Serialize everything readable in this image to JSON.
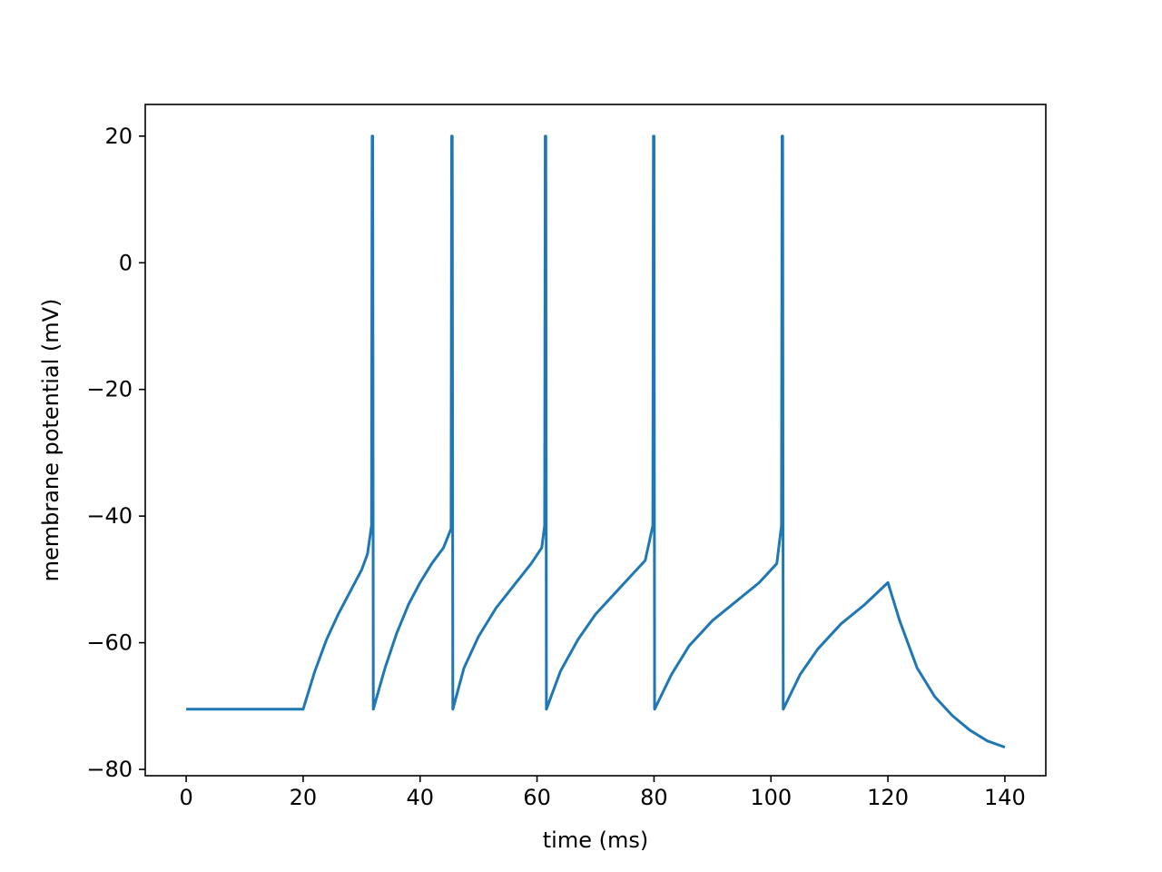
{
  "chart_data": {
    "type": "line",
    "title": "",
    "xlabel": "time (ms)",
    "ylabel": "membrane potential (mV)",
    "xlim": [
      -7,
      147
    ],
    "ylim": [
      -81,
      25
    ],
    "xticks": [
      0,
      20,
      40,
      60,
      80,
      100,
      120,
      140
    ],
    "yticks": [
      -80,
      -60,
      -40,
      -20,
      0,
      20
    ],
    "xtick_labels": [
      "0",
      "20",
      "40",
      "60",
      "80",
      "100",
      "120",
      "140"
    ],
    "ytick_labels": [
      "−80",
      "−60",
      "−40",
      "−20",
      "0",
      "20"
    ],
    "grid": false,
    "legend": false,
    "line_color": "#1f77b4",
    "series": [
      {
        "x": [
          0,
          20,
          22,
          24,
          26,
          28,
          30,
          31,
          31.7,
          31.8,
          31.9,
          32,
          34,
          36,
          38,
          40,
          42,
          44,
          45.3,
          45.4,
          45.5,
          45.6,
          47.5,
          50,
          53,
          56,
          59,
          60.8,
          61.3,
          61.4,
          61.5,
          61.6,
          64,
          67,
          70,
          73,
          76,
          78.5,
          79.8,
          79.9,
          80,
          80.1,
          83,
          86,
          90,
          94,
          98,
          101,
          101.8,
          101.9,
          102,
          102.1,
          105,
          108,
          112,
          116,
          120,
          122,
          125,
          128,
          131,
          134,
          137,
          140
        ],
        "y": [
          -70.5,
          -70.5,
          -64.5,
          -59.5,
          -55.5,
          -52,
          -48.5,
          -46,
          -41.5,
          20,
          20,
          -70.5,
          -64,
          -58.5,
          -54,
          -50.5,
          -47.5,
          -45,
          -42,
          20,
          20,
          -70.5,
          -64,
          -59,
          -54.5,
          -51,
          -47.5,
          -45,
          -41.5,
          20,
          20,
          -70.5,
          -64.5,
          -59.5,
          -55.5,
          -52.5,
          -49.5,
          -47,
          -41.5,
          20,
          20,
          -70.5,
          -65,
          -60.5,
          -56.5,
          -53.5,
          -50.5,
          -47.5,
          -41.5,
          20,
          20,
          -70.5,
          -65,
          -61,
          -57,
          -54,
          -50.5,
          -56.5,
          -64,
          -68.5,
          -71.5,
          -73.8,
          -75.5,
          -76.5
        ]
      }
    ]
  }
}
